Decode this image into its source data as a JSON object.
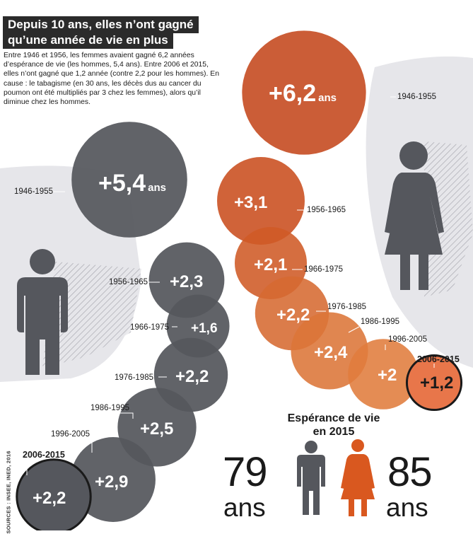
{
  "header": {
    "title_line1": "Depuis 10 ans, elles n’ont gagné",
    "title_line2": "qu’une année de vie en plus",
    "intro_text": "Entre 1946 et 1956, les femmes avaient gagné 6,2 années d’espérance de vie (les hommes, 5,4 ans). Entre 2006 et 2015, elles n’ont gagné que 1,2 année (contre 2,2 pour les hommes). En cause : le tabagisme (en 30 ans, les décès dus au cancer du poumon ont été multipliés par 3 chez les femmes), alors qu’il diminue chez les hommes."
  },
  "source": "SOURCES : INSEE, INED, 2016",
  "colors": {
    "men": "#55575d",
    "women": "#c4471b",
    "background_shape": "#e6e6ea",
    "highlight": "#e8764a"
  },
  "chart_data": {
    "type": "bubble",
    "unit_label": "ans",
    "periods": [
      "1946-1955",
      "1956-1965",
      "1966-1975",
      "1976-1985",
      "1986-1995",
      "1996-2005",
      "2006-2015"
    ],
    "series": [
      {
        "group": "men",
        "labels": [
          "+5,4",
          "+2,3",
          "+1,6",
          "+2,2",
          "+2,5",
          "+2,9",
          "+2,2"
        ],
        "values": [
          5.4,
          2.3,
          1.6,
          2.2,
          2.5,
          2.9,
          2.2
        ]
      },
      {
        "group": "women",
        "labels": [
          "+6,2",
          "+3,1",
          "+2,1",
          "+2,2",
          "+2,4",
          "+2",
          "+1,2"
        ],
        "values": [
          6.2,
          3.1,
          2.1,
          2.2,
          2.4,
          2.0,
          1.2
        ]
      }
    ],
    "highlight_period": "2006-2015"
  },
  "life_expectancy": {
    "title_line1": "Espérance de vie",
    "title_line2": "en 2015",
    "men_value": "79",
    "women_value": "85",
    "unit": "ans"
  },
  "icons": [
    "man-icon",
    "woman-icon"
  ]
}
